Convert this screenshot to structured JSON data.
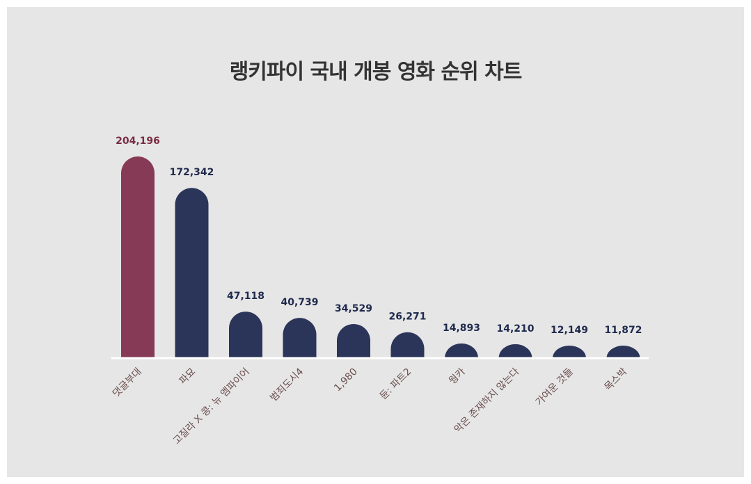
{
  "chart_data": {
    "type": "bar",
    "title": "랭키파이 국내 개봉 영화 순위 차트",
    "categories": [
      "댓글부대",
      "파묘",
      "고질라 X 콩: 뉴 엠파이어",
      "범죄도시4",
      "1,980",
      "듄: 파트2",
      "웡카",
      "악은 존재하지 않는다",
      "가여운 것들",
      "목스박"
    ],
    "values": [
      204196,
      172342,
      47118,
      40739,
      34529,
      26271,
      14893,
      14210,
      12149,
      11872
    ],
    "value_labels": [
      "204,196",
      "172,342",
      "47,118",
      "40,739",
      "34,529",
      "26,271",
      "14,893",
      "14,210",
      "12,149",
      "11,872"
    ],
    "ylim": [
      0,
      204196
    ],
    "grid": false,
    "legend": "none",
    "colors": {
      "highlight": "#873a55",
      "default": "#2b3559",
      "highlight_label": "#7a2c45",
      "default_label": "#1f2a4d",
      "category_label": "#6b4e4e",
      "baseline": "#ffffff"
    }
  }
}
